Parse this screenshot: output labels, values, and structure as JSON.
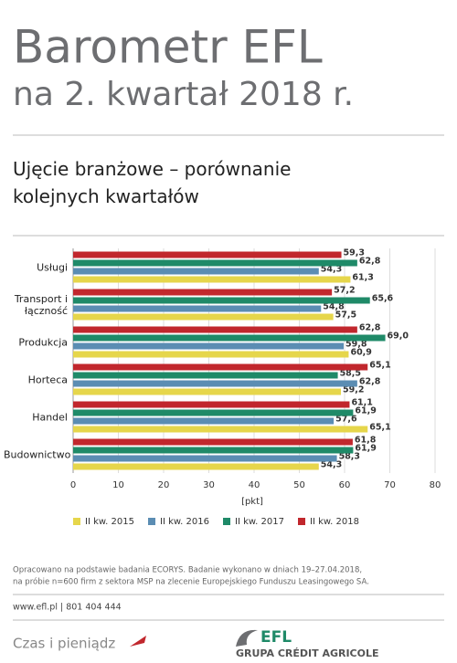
{
  "header": {
    "title": "Barometr EFL",
    "subtitle": "na 2. kwartał 2018 r."
  },
  "chart_data": {
    "type": "barh",
    "title": "Ujęcie branżowe – porównanie kolejnych kwartałów",
    "categories": [
      "Usługi",
      "Transport i łączność",
      "Produkcja",
      "Horteca",
      "Handel",
      "Budownictwo"
    ],
    "series": [
      {
        "name": "II kw. 2015",
        "color": "#e6d64b",
        "values": [
          61.3,
          57.5,
          60.9,
          59.2,
          65.1,
          54.3
        ],
        "value_labels": [
          "61,3",
          "57,5",
          "60,9",
          "59,2",
          "65,1",
          "54,3"
        ]
      },
      {
        "name": "II kw. 2016",
        "color": "#5b8db3",
        "values": [
          54.3,
          54.8,
          59.8,
          62.8,
          57.6,
          58.3
        ],
        "value_labels": [
          "54,3",
          "54,8",
          "59,8",
          "62,8",
          "57,6",
          "58,3"
        ]
      },
      {
        "name": "II kw. 2017",
        "color": "#1f8a68",
        "values": [
          62.8,
          65.6,
          69.0,
          58.5,
          61.9,
          61.9
        ],
        "value_labels": [
          "62,8",
          "65,6",
          "69,0",
          "58,5",
          "61,9",
          "61,9"
        ]
      },
      {
        "name": "II kw. 2018",
        "color": "#c1272d",
        "values": [
          59.3,
          57.2,
          62.8,
          65.1,
          61.1,
          61.8
        ],
        "value_labels": [
          "59,3",
          "57,2",
          "62,8",
          "65,1",
          "61,1",
          "61,8"
        ]
      }
    ],
    "xlabel": "[pkt]",
    "xlim": [
      0,
      80
    ],
    "xticks": [
      0,
      10,
      20,
      30,
      40,
      50,
      60,
      70,
      80
    ],
    "grid": true
  },
  "footer": {
    "note": [
      "Opracowano na podstawie badania ECORYS. Badanie wykonano w dniach 19–27.04.2018,",
      "na próbie n=600 firm z sektora MSP na zlecenie Europejskiego Funduszu Leasingowego SA."
    ],
    "contact": "www.efl.pl | 801 404 444",
    "slogan": "Czas i pieniądz",
    "brand": "EFL",
    "group": "GRUPA CRÉDIT AGRICOLE"
  }
}
